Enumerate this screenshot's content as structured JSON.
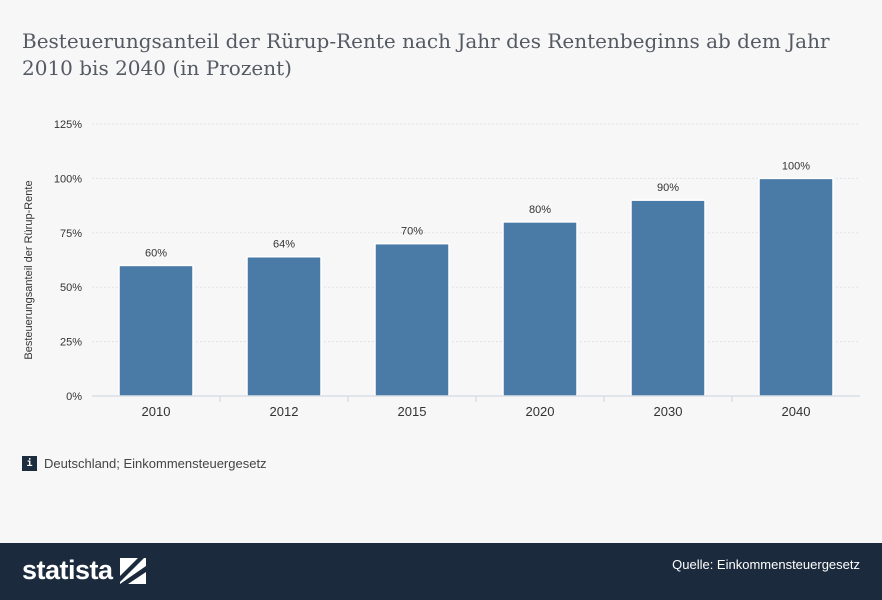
{
  "title": "Besteuerungsanteil der Rürup-Rente nach Jahr des Rentenbeginns ab dem Jahr 2010 bis 2040 (in Prozent)",
  "note": "Deutschland; Einkommensteuergesetz",
  "info_icon_glyph": "i",
  "footer": {
    "logo_text": "statista",
    "source": "Quelle: Einkommensteuergesetz"
  },
  "colors": {
    "bar": "#4a7aa6",
    "footer": "#1b2a3d"
  },
  "chart_data": {
    "type": "bar",
    "categories": [
      "2010",
      "2012",
      "2015",
      "2020",
      "2030",
      "2040"
    ],
    "values": [
      60,
      64,
      70,
      80,
      90,
      100
    ],
    "data_labels": [
      "60%",
      "64%",
      "70%",
      "80%",
      "90%",
      "100%"
    ],
    "ylabel": "Besteuerungsanteil der Rürup-Rente",
    "yticks": [
      0,
      25,
      50,
      75,
      100,
      125
    ],
    "ytick_labels": [
      "0%",
      "25%",
      "50%",
      "75%",
      "100%",
      "125%"
    ],
    "ylim": [
      0,
      125
    ],
    "grid": true
  }
}
